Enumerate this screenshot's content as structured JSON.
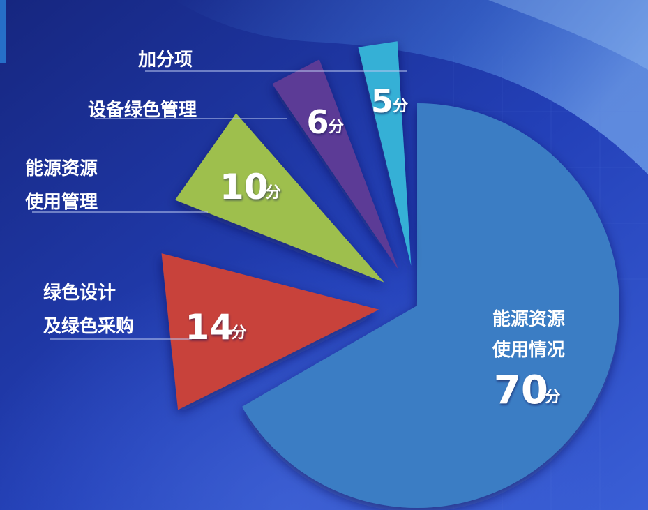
{
  "colors": {
    "background_dark": "#16267f",
    "background_mid": "#2340b8",
    "background_light": "#3a79e0",
    "leader": "#b9c6ee",
    "label_text": "#ffffff"
  },
  "chart_data": {
    "type": "pie",
    "unit": "分",
    "slices": [
      {
        "name": "能源资源使用情况",
        "label_lines": [
          "能源资源",
          "使用情况"
        ],
        "value": 70,
        "value_text": "70",
        "color": "#3b7dc4"
      },
      {
        "name": "绿色设计及绿色采购",
        "label_lines": [
          "绿色设计",
          "及绿色采购"
        ],
        "value": 14,
        "value_text": "14",
        "color": "#c8423a"
      },
      {
        "name": "能源资源使用管理",
        "label_lines": [
          "能源资源",
          "使用管理"
        ],
        "value": 10,
        "value_text": "10",
        "color": "#9ebf4d"
      },
      {
        "name": "设备绿色管理",
        "label_lines": [
          "设备绿色管理"
        ],
        "value": 6,
        "value_text": "6",
        "color": "#5b3a96"
      },
      {
        "name": "加分项",
        "label_lines": [
          "加分项"
        ],
        "value": 5,
        "value_text": "5",
        "color": "#36b0d6"
      }
    ]
  }
}
